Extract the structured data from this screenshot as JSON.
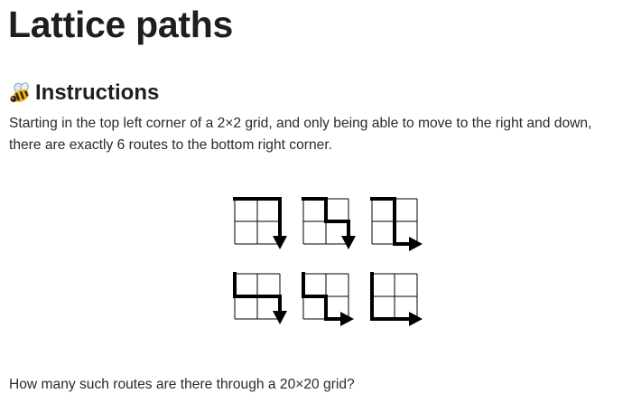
{
  "page": {
    "title": "Lattice paths"
  },
  "instructions": {
    "heading": "Instructions",
    "icon": "bee-icon",
    "intro_text": "Starting in the top left corner of a 2×2 grid, and only being able to move to the right and down, there are exactly 6 routes to the bottom right corner.",
    "question_text": "How many such routes are there through a 20×20 grid?"
  },
  "figure": {
    "grid_size": 2,
    "routes": [
      [
        "R",
        "R",
        "D",
        "D"
      ],
      [
        "R",
        "D",
        "R",
        "D"
      ],
      [
        "R",
        "D",
        "D",
        "R"
      ],
      [
        "D",
        "R",
        "R",
        "D"
      ],
      [
        "D",
        "R",
        "D",
        "R"
      ],
      [
        "D",
        "D",
        "R",
        "R"
      ]
    ],
    "colors": {
      "grid_line": "#000000",
      "path": "#000000"
    }
  }
}
